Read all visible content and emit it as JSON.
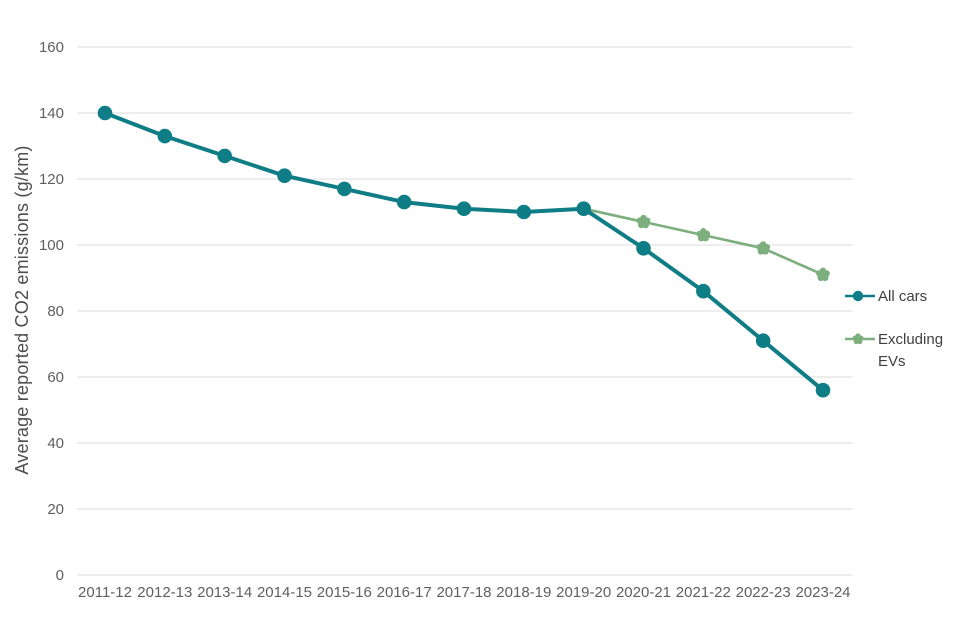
{
  "chart_data": {
    "type": "line",
    "title": "",
    "xlabel": "",
    "ylabel": "Average reported CO2 emissions (g/km)",
    "ylim": [
      0,
      160
    ],
    "ytick_step": 20,
    "grid": "horizontal",
    "legend_position": "right",
    "categories": [
      "2011-12",
      "2012-13",
      "2013-14",
      "2014-15",
      "2015-16",
      "2016-17",
      "2017-18",
      "2018-19",
      "2019-20",
      "2020-21",
      "2021-22",
      "2022-23",
      "2023-24"
    ],
    "series": [
      {
        "name": "All cars",
        "color": "#0e7d86",
        "marker": "circle",
        "values": [
          140,
          133,
          127,
          121,
          117,
          113,
          111,
          110,
          111,
          99,
          86,
          71,
          56
        ]
      },
      {
        "name": "Excluding EVs",
        "color": "#7cae7e",
        "marker": "flower",
        "values": [
          null,
          null,
          null,
          null,
          null,
          null,
          null,
          null,
          111,
          107,
          103,
          99,
          91
        ]
      }
    ],
    "colors": {
      "gridline": "#e3e3e3",
      "tick_label": "#5f5f5f",
      "axis_title": "#4d4d4d",
      "legend_text": "#3f3f3f",
      "background": "#ffffff"
    }
  }
}
